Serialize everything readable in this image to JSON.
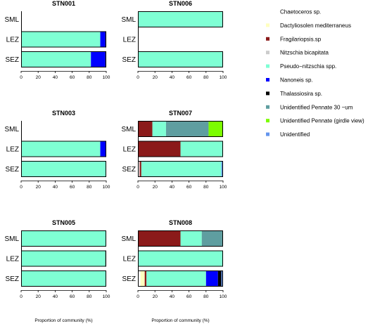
{
  "chart_data": {
    "type": "bar",
    "orientation": "horizontal",
    "stacked": true,
    "xlabel": "Proportion of community (%)",
    "xlim": [
      0,
      100
    ],
    "x_ticks": [
      0,
      20,
      40,
      60,
      80,
      100
    ],
    "rows": [
      "SML",
      "LEZ",
      "SEZ"
    ],
    "legend": [
      {
        "name": "Chaetoceros sp.",
        "color": "#ffffff"
      },
      {
        "name": "Dactyliosolen mediterraneus",
        "color": "#ffffbf"
      },
      {
        "name": "Fragilariopsis.sp",
        "color": "#8b1a1a"
      },
      {
        "name": "Nitzschia bicapitata",
        "color": "#cccccc"
      },
      {
        "name": "Pseudo−nitzschia spp.",
        "color": "#7fffd4"
      },
      {
        "name": "Nanoneis sp.",
        "color": "#0000ff"
      },
      {
        "name": "Thalassiosira sp.",
        "color": "#000000"
      },
      {
        "name": "Unidentified Pennate 30 ~um",
        "color": "#5f9ea0"
      },
      {
        "name": "Unidentified Pennate (girdle view)",
        "color": "#7cfc00"
      },
      {
        "name": "Unidentified",
        "color": "#6495ed"
      }
    ],
    "panels": [
      {
        "title": "STN001",
        "bars": {
          "SML": [],
          "LEZ": [
            {
              "species": "Pseudo−nitzschia spp.",
              "value": 93
            },
            {
              "species": "Nanoneis sp.",
              "value": 6
            },
            {
              "species": "Thalassiosira sp.",
              "value": 1
            }
          ],
          "SEZ": [
            {
              "species": "Pseudo−nitzschia spp.",
              "value": 82
            },
            {
              "species": "Nanoneis sp.",
              "value": 17
            },
            {
              "species": "Thalassiosira sp.",
              "value": 1
            }
          ]
        }
      },
      {
        "title": "STN006",
        "bars": {
          "SML": [
            {
              "species": "Pseudo−nitzschia spp.",
              "value": 100
            }
          ],
          "LEZ": [],
          "SEZ": [
            {
              "species": "Pseudo−nitzschia spp.",
              "value": 100
            }
          ]
        }
      },
      {
        "title": "STN003",
        "bars": {
          "SML": [],
          "LEZ": [
            {
              "species": "Pseudo−nitzschia spp.",
              "value": 93
            },
            {
              "species": "Nanoneis sp.",
              "value": 7
            }
          ],
          "SEZ": [
            {
              "species": "Pseudo−nitzschia spp.",
              "value": 100
            }
          ]
        }
      },
      {
        "title": "STN007",
        "bars": {
          "SML": [
            {
              "species": "Fragilariopsis.sp",
              "value": 17
            },
            {
              "species": "Pseudo−nitzschia spp.",
              "value": 16
            },
            {
              "species": "Unidentified Pennate 30 ~um",
              "value": 50
            },
            {
              "species": "Unidentified Pennate (girdle view)",
              "value": 17
            }
          ],
          "LEZ": [
            {
              "species": "Fragilariopsis.sp",
              "value": 50
            },
            {
              "species": "Pseudo−nitzschia spp.",
              "value": 50
            }
          ],
          "SEZ": [
            {
              "species": "Chaetoceros sp.",
              "value": 2
            },
            {
              "species": "Fragilariopsis.sp",
              "value": 2
            },
            {
              "species": "Pseudo−nitzschia spp.",
              "value": 94
            },
            {
              "species": "Unidentified",
              "value": 2
            }
          ]
        }
      },
      {
        "title": "STN005",
        "bars": {
          "SML": [
            {
              "species": "Pseudo−nitzschia spp.",
              "value": 100
            }
          ],
          "LEZ": [
            {
              "species": "Pseudo−nitzschia spp.",
              "value": 99
            },
            {
              "species": "Thalassiosira sp.",
              "value": 1
            }
          ],
          "SEZ": [
            {
              "species": "Pseudo−nitzschia spp.",
              "value": 100
            }
          ]
        }
      },
      {
        "title": "STN008",
        "bars": {
          "SML": [
            {
              "species": "Fragilariopsis.sp",
              "value": 50
            },
            {
              "species": "Pseudo−nitzschia spp.",
              "value": 25
            },
            {
              "species": "Unidentified Pennate 30 ~um",
              "value": 25
            }
          ],
          "LEZ": [
            {
              "species": "Unidentified",
              "value": 1
            },
            {
              "species": "Pseudo−nitzschia spp.",
              "value": 99
            }
          ],
          "SEZ": [
            {
              "species": "Chaetoceros sp.",
              "value": 3
            },
            {
              "species": "Dactyliosolen mediterraneus",
              "value": 5
            },
            {
              "species": "Fragilariopsis.sp",
              "value": 2
            },
            {
              "species": "Pseudo−nitzschia spp.",
              "value": 70
            },
            {
              "species": "Nanoneis sp.",
              "value": 14
            },
            {
              "species": "Thalassiosira sp.",
              "value": 4
            },
            {
              "species": "Unidentified",
              "value": 2
            }
          ]
        }
      }
    ]
  }
}
